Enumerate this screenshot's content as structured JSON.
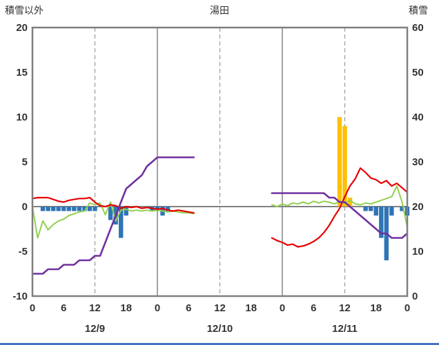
{
  "chart_data": {
    "type": "line",
    "title": "湯田",
    "left_axis": {
      "label": "積雪以外",
      "min": -10,
      "max": 20,
      "ticks": [
        20,
        15,
        10,
        5,
        0,
        -5,
        -10
      ]
    },
    "right_axis": {
      "label": "積雪",
      "min": 0,
      "max": 60,
      "ticks": [
        60,
        50,
        40,
        30,
        20,
        10,
        0
      ]
    },
    "x_axis": {
      "hours_total": 72,
      "hour_tick_labels": [
        "0",
        "6",
        "12",
        "18",
        "0",
        "6",
        "12",
        "18",
        "0",
        "6",
        "12",
        "18",
        "0"
      ],
      "day_labels": [
        "12/9",
        "12/10",
        "12/11"
      ],
      "day_label_hours": [
        12,
        36,
        60
      ],
      "grid_dashed_hours": [
        12,
        36,
        60
      ],
      "grid_solid_hours": [
        24,
        48
      ]
    },
    "colors": {
      "red": "#e60000",
      "green": "#92d050",
      "purple": "#7030a0",
      "blue": "#2e75b6",
      "orange": "#ffc000",
      "frame": "#7f7f7f",
      "grid": "#a6a6a6",
      "bottom_strip": "#4472c4"
    },
    "series": [
      {
        "name": "orange-bars",
        "type": "bar",
        "axis": "left",
        "color": "#ffc000",
        "points": [
          [
            59,
            10
          ],
          [
            60,
            9
          ],
          [
            61,
            1
          ]
        ]
      },
      {
        "name": "blue-bars",
        "type": "bar",
        "axis": "left",
        "color": "#2e75b6",
        "points": [
          [
            2,
            -0.5
          ],
          [
            3,
            -0.5
          ],
          [
            4,
            -0.5
          ],
          [
            5,
            -0.5
          ],
          [
            6,
            -0.5
          ],
          [
            7,
            -0.5
          ],
          [
            8,
            -0.5
          ],
          [
            9,
            -0.5
          ],
          [
            10,
            -0.5
          ],
          [
            11,
            -0.5
          ],
          [
            12,
            -0.5
          ],
          [
            15,
            -1.5
          ],
          [
            16,
            -2.0
          ],
          [
            17,
            -3.5
          ],
          [
            18,
            -1.0
          ],
          [
            23,
            -0.5
          ],
          [
            24,
            -0.5
          ],
          [
            25,
            -1.0
          ],
          [
            26,
            -0.5
          ],
          [
            64,
            -0.5
          ],
          [
            65,
            -0.5
          ],
          [
            66,
            -1.0
          ],
          [
            67,
            -3.5
          ],
          [
            68,
            -6.0
          ],
          [
            69,
            -1.0
          ],
          [
            71,
            -0.5
          ],
          [
            72,
            -1.0
          ]
        ]
      },
      {
        "name": "green-line",
        "type": "line",
        "axis": "left",
        "color": "#92d050",
        "width": 2,
        "segments": [
          [
            [
              0,
              0.0
            ],
            [
              1,
              -3.5
            ],
            [
              2,
              -1.6
            ],
            [
              3,
              -2.6
            ],
            [
              4,
              -2.0
            ],
            [
              5,
              -1.6
            ],
            [
              6,
              -1.4
            ],
            [
              7,
              -1.0
            ],
            [
              8,
              -0.8
            ],
            [
              9,
              -0.6
            ],
            [
              10,
              -0.5
            ],
            [
              11,
              0.4
            ],
            [
              12,
              0.2
            ],
            [
              13,
              0.4
            ],
            [
              14,
              -0.9
            ],
            [
              15,
              0.5
            ],
            [
              16,
              -1.6
            ],
            [
              17,
              -0.4
            ],
            [
              18,
              -0.3
            ],
            [
              19,
              -0.5
            ],
            [
              20,
              -0.4
            ],
            [
              21,
              -0.5
            ],
            [
              22,
              -0.4
            ],
            [
              23,
              -0.5
            ],
            [
              24,
              -0.4
            ],
            [
              25,
              -0.5
            ],
            [
              26,
              -0.6
            ],
            [
              27,
              -0.5
            ],
            [
              28,
              -0.6
            ],
            [
              29,
              -0.7
            ],
            [
              30,
              -0.7
            ],
            [
              31,
              -0.8
            ]
          ],
          [
            [
              46,
              0.2
            ],
            [
              47,
              0.0
            ],
            [
              48,
              0.3
            ],
            [
              49,
              0.1
            ],
            [
              50,
              0.4
            ],
            [
              51,
              0.3
            ],
            [
              52,
              0.5
            ],
            [
              53,
              0.3
            ],
            [
              54,
              0.6
            ],
            [
              55,
              0.4
            ],
            [
              56,
              0.6
            ],
            [
              57,
              0.5
            ],
            [
              58,
              0.3
            ],
            [
              59,
              0.6
            ],
            [
              60,
              0.4
            ],
            [
              61,
              0.7
            ],
            [
              62,
              0.3
            ],
            [
              63,
              0.2
            ],
            [
              64,
              0.4
            ],
            [
              65,
              0.3
            ],
            [
              66,
              0.5
            ],
            [
              67,
              0.7
            ],
            [
              68,
              0.9
            ],
            [
              69,
              1.1
            ],
            [
              70,
              2.3
            ],
            [
              71,
              0.5
            ],
            [
              72,
              -2.3
            ]
          ]
        ]
      },
      {
        "name": "red-line",
        "type": "line",
        "axis": "left",
        "color": "#e60000",
        "width": 2.2,
        "segments": [
          [
            [
              0,
              0.9
            ],
            [
              1,
              1.0
            ],
            [
              2,
              1.0
            ],
            [
              3,
              1.0
            ],
            [
              4,
              0.8
            ],
            [
              5,
              0.6
            ],
            [
              6,
              0.5
            ],
            [
              7,
              0.7
            ],
            [
              8,
              0.8
            ],
            [
              9,
              0.9
            ],
            [
              10,
              0.9
            ],
            [
              11,
              1.0
            ],
            [
              12,
              0.5
            ],
            [
              13,
              0.1
            ],
            [
              14,
              0.0
            ],
            [
              15,
              0.2
            ],
            [
              16,
              0.1
            ],
            [
              17,
              -0.2
            ],
            [
              18,
              0.0
            ],
            [
              19,
              -0.1
            ],
            [
              20,
              0.0
            ],
            [
              21,
              -0.2
            ],
            [
              22,
              -0.1
            ],
            [
              23,
              -0.2
            ],
            [
              24,
              -0.3
            ],
            [
              25,
              -0.2
            ],
            [
              26,
              -0.4
            ],
            [
              27,
              -0.5
            ],
            [
              28,
              -0.4
            ],
            [
              29,
              -0.5
            ],
            [
              30,
              -0.6
            ],
            [
              31,
              -0.7
            ]
          ],
          [
            [
              46,
              -3.5
            ],
            [
              47,
              -3.8
            ],
            [
              48,
              -4.0
            ],
            [
              49,
              -4.3
            ],
            [
              50,
              -4.2
            ],
            [
              51,
              -4.5
            ],
            [
              52,
              -4.4
            ],
            [
              53,
              -4.2
            ],
            [
              54,
              -3.9
            ],
            [
              55,
              -3.5
            ],
            [
              56,
              -2.9
            ],
            [
              57,
              -2.1
            ],
            [
              58,
              -1.1
            ],
            [
              59,
              -0.2
            ],
            [
              60,
              1.1
            ],
            [
              61,
              2.3
            ],
            [
              62,
              3.1
            ],
            [
              63,
              4.3
            ],
            [
              64,
              3.8
            ],
            [
              65,
              3.2
            ],
            [
              66,
              3.0
            ],
            [
              67,
              2.6
            ],
            [
              68,
              2.9
            ],
            [
              69,
              2.3
            ],
            [
              70,
              2.6
            ],
            [
              71,
              2.1
            ],
            [
              72,
              1.6
            ]
          ]
        ]
      },
      {
        "name": "purple-line",
        "type": "line",
        "axis": "right",
        "color": "#7030a0",
        "width": 2.6,
        "segments": [
          [
            [
              0,
              5
            ],
            [
              1,
              5
            ],
            [
              2,
              5
            ],
            [
              3,
              6
            ],
            [
              4,
              6
            ],
            [
              5,
              6
            ],
            [
              6,
              7
            ],
            [
              7,
              7
            ],
            [
              8,
              7
            ],
            [
              9,
              8
            ],
            [
              10,
              8
            ],
            [
              11,
              8
            ],
            [
              12,
              9
            ],
            [
              13,
              9
            ],
            [
              14,
              12
            ],
            [
              15,
              15
            ],
            [
              16,
              18
            ],
            [
              17,
              21
            ],
            [
              18,
              24
            ],
            [
              19,
              25
            ],
            [
              20,
              26
            ],
            [
              21,
              27
            ],
            [
              22,
              29
            ],
            [
              23,
              30
            ],
            [
              24,
              31
            ],
            [
              25,
              31
            ],
            [
              26,
              31
            ],
            [
              27,
              31
            ],
            [
              28,
              31
            ],
            [
              29,
              31
            ],
            [
              30,
              31
            ],
            [
              31,
              31
            ]
          ],
          [
            [
              46,
              23
            ],
            [
              47,
              23
            ],
            [
              48,
              23
            ],
            [
              49,
              23
            ],
            [
              50,
              23
            ],
            [
              51,
              23
            ],
            [
              52,
              23
            ],
            [
              53,
              23
            ],
            [
              54,
              23
            ],
            [
              55,
              23
            ],
            [
              56,
              23
            ],
            [
              57,
              22
            ],
            [
              58,
              22
            ],
            [
              59,
              21
            ],
            [
              60,
              21
            ],
            [
              61,
              20
            ],
            [
              62,
              19
            ],
            [
              63,
              18
            ],
            [
              64,
              17
            ],
            [
              65,
              16
            ],
            [
              66,
              15
            ],
            [
              67,
              14
            ],
            [
              68,
              14
            ],
            [
              69,
              13
            ],
            [
              70,
              13
            ],
            [
              71,
              13
            ],
            [
              72,
              14
            ]
          ]
        ]
      }
    ]
  }
}
